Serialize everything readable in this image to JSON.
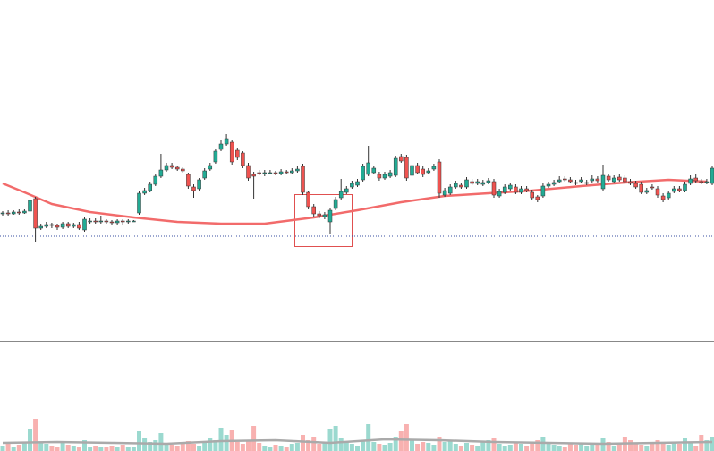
{
  "chart_data": {
    "type": "candlestick",
    "up_color": "#22ab94",
    "down_color": "#ef5350",
    "ylim": [
      0,
      381
    ],
    "reference_line": 117,
    "open": [
      142,
      143,
      142,
      144,
      143,
      145,
      159,
      126,
      128,
      130,
      129,
      127,
      131,
      128,
      130,
      124,
      133,
      134,
      133,
      134,
      133,
      132,
      134,
      133,
      134,
      143,
      165,
      168,
      175,
      184,
      191,
      196,
      194,
      192,
      186,
      172,
      170,
      182,
      192,
      200,
      214,
      220,
      222,
      213,
      210,
      196,
      186,
      188,
      187,
      188,
      188,
      187,
      189,
      188,
      190,
      195,
      166,
      150,
      142,
      139,
      133,
      148,
      160,
      166,
      172,
      174,
      180,
      186,
      188,
      186,
      182,
      184,
      185,
      206,
      205,
      185,
      196,
      192,
      188,
      192,
      200,
      163,
      165,
      172,
      174,
      172,
      178,
      176,
      175,
      177,
      178,
      162,
      166,
      170,
      172,
      166,
      170,
      166,
      161,
      162,
      173,
      175,
      178,
      181,
      180,
      177,
      178,
      176,
      179,
      181,
      170,
      184,
      178,
      183,
      182,
      178,
      176,
      175,
      166,
      172,
      170,
      162,
      160,
      167,
      170,
      168,
      176,
      182,
      178,
      177,
      176
    ],
    "high": [
      145,
      146,
      146,
      147,
      147,
      160,
      161,
      131,
      133,
      132,
      131,
      133,
      133,
      132,
      133,
      139,
      137,
      137,
      140,
      136,
      135,
      136,
      136,
      136,
      135,
      167,
      171,
      178,
      187,
      209,
      199,
      199,
      196,
      194,
      188,
      175,
      182,
      193,
      199,
      214,
      225,
      231,
      225,
      216,
      212,
      199,
      189,
      191,
      191,
      191,
      190,
      192,
      191,
      193,
      196,
      198,
      168,
      153,
      145,
      144,
      148,
      161,
      181,
      173,
      179,
      181,
      198,
      218,
      196,
      189,
      189,
      191,
      207,
      209,
      208,
      199,
      199,
      195,
      193,
      198,
      203,
      171,
      175,
      179,
      177,
      183,
      181,
      181,
      180,
      182,
      181,
      170,
      175,
      177,
      175,
      173,
      173,
      169,
      163,
      176,
      178,
      180,
      184,
      184,
      183,
      180,
      183,
      180,
      185,
      184,
      197,
      187,
      185,
      186,
      185,
      181,
      179,
      178,
      171,
      175,
      173,
      165,
      168,
      173,
      173,
      178,
      185,
      186,
      181,
      181,
      196
    ],
    "low": [
      140,
      140,
      141,
      141,
      142,
      143,
      111,
      124,
      126,
      126,
      124,
      125,
      126,
      126,
      124,
      122,
      131,
      131,
      131,
      131,
      130,
      130,
      129,
      131,
      133,
      141,
      163,
      166,
      173,
      182,
      189,
      192,
      190,
      188,
      170,
      160,
      168,
      180,
      190,
      198,
      212,
      218,
      197,
      202,
      193,
      179,
      159,
      185,
      184,
      186,
      185,
      185,
      186,
      186,
      188,
      163,
      147,
      139,
      137,
      136,
      119,
      146,
      158,
      164,
      170,
      172,
      178,
      184,
      186,
      179,
      180,
      182,
      183,
      199,
      179,
      183,
      186,
      183,
      186,
      190,
      160,
      161,
      163,
      170,
      170,
      170,
      174,
      174,
      173,
      175,
      160,
      160,
      164,
      168,
      164,
      164,
      166,
      158,
      155,
      160,
      171,
      173,
      176,
      178,
      176,
      174,
      176,
      174,
      177,
      177,
      168,
      178,
      176,
      178,
      176,
      174,
      170,
      164,
      164,
      169,
      160,
      155,
      158,
      165,
      166,
      166,
      174,
      177,
      175,
      175,
      174
    ],
    "close": [
      143,
      142,
      144,
      143,
      145,
      157,
      126,
      128,
      130,
      129,
      127,
      131,
      128,
      130,
      126,
      136,
      134,
      133,
      134,
      133,
      132,
      134,
      133,
      134,
      134,
      165,
      168,
      175,
      184,
      191,
      196,
      194,
      192,
      190,
      173,
      168,
      180,
      190,
      196,
      212,
      220,
      226,
      200,
      205,
      196,
      182,
      184,
      187,
      188,
      188,
      187,
      189,
      188,
      190,
      192,
      166,
      150,
      142,
      140,
      141,
      146,
      158,
      167,
      170,
      176,
      178,
      195,
      199,
      193,
      182,
      186,
      188,
      204,
      201,
      182,
      196,
      188,
      186,
      190,
      195,
      165,
      168,
      172,
      176,
      172,
      180,
      176,
      178,
      177,
      179,
      163,
      167,
      172,
      174,
      166,
      170,
      168,
      160,
      158,
      173,
      175,
      177,
      180,
      180,
      178,
      176,
      180,
      177,
      181,
      179,
      185,
      180,
      182,
      180,
      178,
      176,
      172,
      166,
      168,
      171,
      163,
      158,
      165,
      170,
      168,
      175,
      181,
      179,
      177,
      178,
      193
    ],
    "ma": {
      "color": "#f26b6b",
      "x": [
        0,
        4,
        9,
        16,
        24,
        32,
        40,
        48,
        57,
        65,
        73,
        81,
        89,
        97,
        106,
        114,
        122,
        129
      ],
      "values": [
        176,
        166,
        153,
        144,
        138,
        133,
        131,
        131,
        138,
        146,
        155,
        162,
        165,
        168,
        173,
        177,
        180,
        178
      ]
    },
    "volume": [
      6,
      8,
      5,
      7,
      9,
      25,
      36,
      10,
      8,
      6,
      5,
      9,
      7,
      6,
      5,
      12,
      4,
      6,
      5,
      4,
      6,
      5,
      7,
      4,
      5,
      22,
      14,
      10,
      12,
      20,
      8,
      7,
      6,
      9,
      11,
      8,
      6,
      10,
      14,
      12,
      26,
      18,
      24,
      10,
      8,
      12,
      28,
      9,
      6,
      5,
      7,
      6,
      5,
      8,
      9,
      18,
      12,
      16,
      8,
      10,
      25,
      28,
      14,
      10,
      8,
      6,
      12,
      30,
      10,
      8,
      7,
      9,
      16,
      22,
      30,
      12,
      8,
      10,
      9,
      7,
      16,
      10,
      12,
      8,
      6,
      9,
      7,
      6,
      10,
      12,
      14,
      8,
      6,
      7,
      10,
      8,
      6,
      9,
      12,
      16,
      8,
      7,
      6,
      5,
      8,
      7,
      9,
      6,
      7,
      8,
      14,
      10,
      6,
      8,
      16,
      12,
      9,
      7,
      6,
      8,
      12,
      9,
      7,
      10,
      8,
      14,
      10,
      6,
      18,
      12,
      16
    ],
    "volume_ylim": [
      0,
      40
    ],
    "volume_ma": {
      "color": "#aaaaaa",
      "x": [
        0,
        10,
        20,
        30,
        40,
        50,
        60,
        70,
        80,
        90,
        100,
        110,
        120,
        130
      ],
      "values": [
        9,
        10,
        9,
        8,
        11,
        12,
        9,
        13,
        12,
        10,
        9,
        8,
        9,
        10
      ]
    }
  }
}
